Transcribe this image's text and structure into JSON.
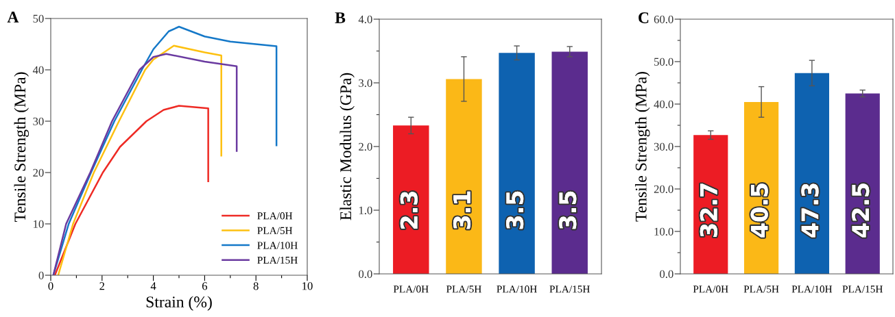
{
  "chart_data": [
    {
      "type": "line",
      "title": "A",
      "xlabel": "Strain (%)",
      "ylabel": "Tensile Strength (MPa)",
      "xlim": [
        0,
        10
      ],
      "ylim": [
        0,
        50
      ],
      "xticks": [
        0,
        {
          "value": 1,
          "label": null
        },
        2,
        {
          "value": 3,
          "label": null
        },
        4,
        {
          "value": 5,
          "label": null
        },
        6,
        {
          "value": 7,
          "label": null
        },
        8,
        {
          "value": 9,
          "label": null
        },
        10
      ],
      "yticks": [
        0,
        10,
        20,
        30,
        40,
        50
      ],
      "grid": false,
      "legend": "bottom right",
      "marker": "none",
      "line_style": "solid",
      "series": [
        {
          "name": "PLA/0H",
          "color": "#ee2a24",
          "x": [
            0.16,
            0.96,
            2.03,
            2.7,
            3.73,
            4.4,
            5.0,
            6.14,
            6.14
          ],
          "values": [
            0,
            10,
            20,
            25,
            30,
            32.2,
            33,
            32.5,
            18.3
          ]
        },
        {
          "name": "PLA/5H",
          "color": "#fdc010",
          "x": [
            0.29,
            0.87,
            1.68,
            2.66,
            3.68,
            4.0,
            4.8,
            6.0,
            6.65,
            6.65
          ],
          "values": [
            0,
            10,
            20,
            30,
            40,
            42,
            44.7,
            43.4,
            42.8,
            23.3
          ]
        },
        {
          "name": "PLA/10H",
          "color": "#1478c8",
          "x": [
            0.1,
            0.7,
            1.57,
            2.48,
            3.55,
            4.0,
            4.6,
            5.0,
            6.0,
            7.0,
            8.8,
            8.8
          ],
          "values": [
            0,
            10,
            20,
            30,
            40,
            44,
            47.5,
            48.4,
            46.5,
            45.5,
            44.6,
            25.3
          ]
        },
        {
          "name": "PLA/15H",
          "color": "#6a3aa0",
          "x": [
            0.1,
            0.6,
            1.54,
            2.39,
            3.46,
            4.0,
            4.5,
            6.0,
            7.25,
            7.25
          ],
          "values": [
            0,
            10,
            20,
            30,
            40,
            42.5,
            43.1,
            41.6,
            40.7,
            24.2
          ]
        }
      ]
    },
    {
      "type": "bar",
      "title": "B",
      "ylabel": "Elastic Modulus (GPa)",
      "categories": [
        "PLA/0H",
        "PLA/5H",
        "PLA/10H",
        "PLA/15H"
      ],
      "values": [
        2.33,
        3.06,
        3.47,
        3.49
      ],
      "errors": [
        0.13,
        0.35,
        0.11,
        0.08
      ],
      "value_labels": [
        "2.3",
        "3.1",
        "3.5",
        "3.5"
      ],
      "colors": [
        "#ec1c24",
        "#fbb817",
        "#0e62b0",
        "#5b2c8e"
      ],
      "ylim": [
        0,
        4
      ],
      "yticks": [
        {
          "value": 0,
          "label": "0.0"
        },
        {
          "value": 0.5,
          "label": null
        },
        {
          "value": 1,
          "label": "1.0"
        },
        {
          "value": 1.5,
          "label": null
        },
        {
          "value": 2,
          "label": "2.0"
        },
        {
          "value": 2.5,
          "label": null
        },
        {
          "value": 3,
          "label": "3.0"
        },
        {
          "value": 3.5,
          "label": null
        },
        {
          "value": 4,
          "label": "4.0"
        }
      ],
      "grid": false
    },
    {
      "type": "bar",
      "title": "C",
      "ylabel": "Tensile Strength (MPa)",
      "categories": [
        "PLA/0H",
        "PLA/5H",
        "PLA/10H",
        "PLA/15H"
      ],
      "values": [
        32.7,
        40.5,
        47.3,
        42.5
      ],
      "errors": [
        1.0,
        3.6,
        3.0,
        0.8
      ],
      "data_labels": true,
      "colors": [
        "#ec1c24",
        "#fbb817",
        "#0e62b0",
        "#5b2c8e"
      ],
      "ylim": [
        0,
        60
      ],
      "yticks": [
        {
          "value": 0,
          "label": "0.0"
        },
        {
          "value": 5,
          "label": null
        },
        {
          "value": 10,
          "label": "10.0"
        },
        {
          "value": 15,
          "label": null
        },
        {
          "value": 20,
          "label": "20.0"
        },
        {
          "value": 25,
          "label": null
        },
        {
          "value": 30,
          "label": "30.0"
        },
        {
          "value": 35,
          "label": null
        },
        {
          "value": 40,
          "label": "40.0"
        },
        {
          "value": 45,
          "label": null
        },
        {
          "value": 50,
          "label": "50.0"
        },
        {
          "value": 55,
          "label": null
        },
        {
          "value": 60,
          "label": "60.0"
        }
      ],
      "grid": false
    }
  ]
}
